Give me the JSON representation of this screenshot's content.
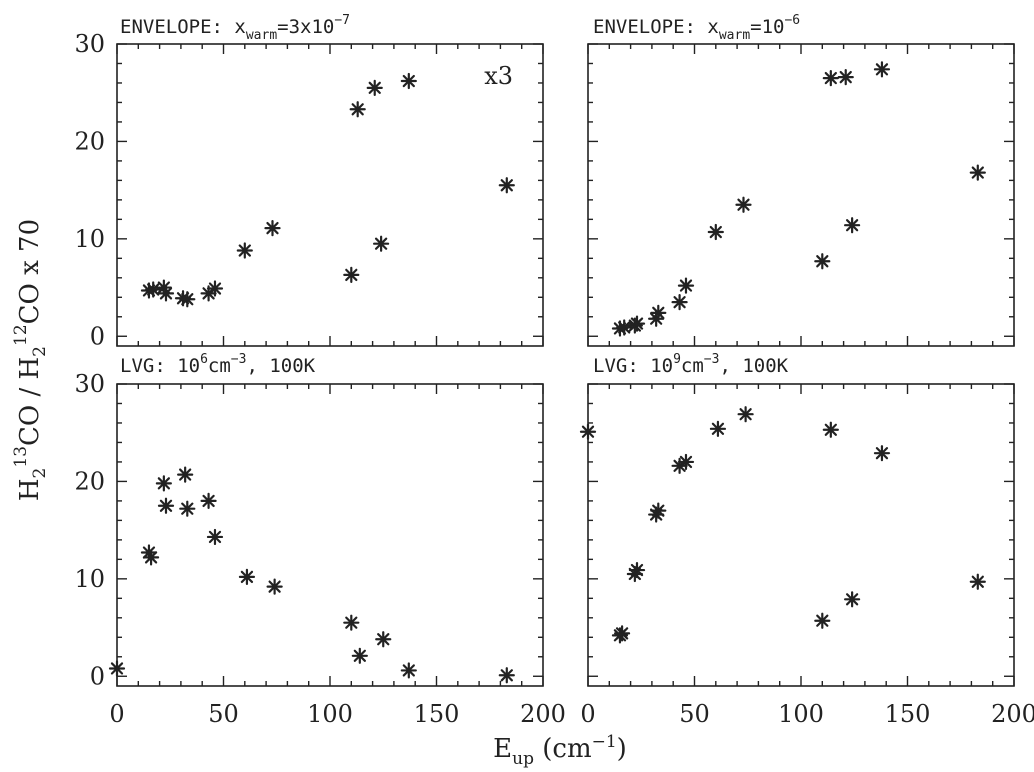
{
  "figure": {
    "xlabel_main": "E",
    "xlabel_sub": "up",
    "xlabel_unit_open": " (cm",
    "xlabel_unit_sup": "−1",
    "xlabel_unit_close": ")",
    "ylabel": {
      "p1": "H",
      "p1_sub": "2",
      "p2_sup": "13",
      "p3": "CO / H",
      "p3_sub": "2",
      "p4_sup": "12",
      "p5": "CO x 70"
    }
  },
  "chart_data": [
    {
      "type": "scatter",
      "panel": "top-left",
      "title": {
        "main": "ENVELOPE: x",
        "sub": "warm",
        "mid": "=3x10",
        "sup": "−7"
      },
      "annotation": "x3",
      "xlim": [
        0,
        200
      ],
      "ylim": [
        -1,
        30
      ],
      "xticks": [
        0,
        50,
        100,
        150,
        200
      ],
      "yticks": [
        0,
        10,
        20,
        30
      ],
      "show_xtick_labels": false,
      "show_ytick_labels": true,
      "points": [
        [
          15,
          4.7
        ],
        [
          17,
          4.8
        ],
        [
          22,
          5.0
        ],
        [
          23,
          4.4
        ],
        [
          31,
          3.9
        ],
        [
          33,
          3.8
        ],
        [
          43,
          4.4
        ],
        [
          46,
          4.9
        ],
        [
          60,
          8.8
        ],
        [
          73,
          11.1
        ],
        [
          110,
          6.3
        ],
        [
          113,
          23.3
        ],
        [
          121,
          25.5
        ],
        [
          124,
          9.5
        ],
        [
          137,
          26.2
        ],
        [
          183,
          15.5
        ]
      ]
    },
    {
      "type": "scatter",
      "panel": "top-right",
      "title": {
        "main": "ENVELOPE: x",
        "sub": "warm",
        "mid": "=10",
        "sup": "−6"
      },
      "annotation": "",
      "xlim": [
        0,
        200
      ],
      "ylim": [
        -1,
        30
      ],
      "xticks": [
        0,
        50,
        100,
        150,
        200
      ],
      "yticks": [
        0,
        10,
        20,
        30
      ],
      "show_xtick_labels": false,
      "show_ytick_labels": false,
      "points": [
        [
          15,
          0.8
        ],
        [
          17,
          0.9
        ],
        [
          22,
          1.1
        ],
        [
          23,
          1.3
        ],
        [
          32,
          1.8
        ],
        [
          33,
          2.4
        ],
        [
          43,
          3.5
        ],
        [
          46,
          5.2
        ],
        [
          60,
          10.7
        ],
        [
          73,
          13.5
        ],
        [
          110,
          7.7
        ],
        [
          114,
          26.5
        ],
        [
          121,
          26.6
        ],
        [
          124,
          11.4
        ],
        [
          138,
          27.4
        ],
        [
          183,
          16.8
        ]
      ]
    },
    {
      "type": "scatter",
      "panel": "bottom-left",
      "title": {
        "main": "LVG: 10",
        "sup": "6",
        "mid": "cm",
        "sup2": "−3",
        "tail": ", 100K"
      },
      "annotation": "",
      "xlim": [
        0,
        200
      ],
      "ylim": [
        -1,
        30
      ],
      "xticks": [
        0,
        50,
        100,
        150,
        200
      ],
      "yticks": [
        0,
        10,
        20,
        30
      ],
      "show_xtick_labels": true,
      "show_ytick_labels": true,
      "points": [
        [
          0,
          0.8
        ],
        [
          15,
          12.7
        ],
        [
          16,
          12.2
        ],
        [
          22,
          19.8
        ],
        [
          23,
          17.5
        ],
        [
          32,
          20.7
        ],
        [
          33,
          17.2
        ],
        [
          43,
          18.0
        ],
        [
          46,
          14.3
        ],
        [
          61,
          10.2
        ],
        [
          74,
          9.2
        ],
        [
          110,
          5.5
        ],
        [
          114,
          2.1
        ],
        [
          125,
          3.8
        ],
        [
          137,
          0.6
        ],
        [
          183,
          0.1
        ]
      ]
    },
    {
      "type": "scatter",
      "panel": "bottom-right",
      "title": {
        "main": "LVG: 10",
        "sup": "9",
        "mid": "cm",
        "sup2": "−3",
        "tail": ", 100K"
      },
      "annotation": "",
      "xlim": [
        0,
        200
      ],
      "ylim": [
        -1,
        30
      ],
      "xticks": [
        0,
        50,
        100,
        150,
        200
      ],
      "yticks": [
        0,
        10,
        20,
        30
      ],
      "show_xtick_labels": true,
      "show_ytick_labels": false,
      "points": [
        [
          0,
          25.1
        ],
        [
          15,
          4.2
        ],
        [
          16,
          4.4
        ],
        [
          22,
          10.5
        ],
        [
          23,
          10.9
        ],
        [
          32,
          16.6
        ],
        [
          33,
          17.0
        ],
        [
          43,
          21.6
        ],
        [
          46,
          22.0
        ],
        [
          61,
          25.4
        ],
        [
          74,
          26.9
        ],
        [
          110,
          5.7
        ],
        [
          114,
          25.3
        ],
        [
          124,
          7.9
        ],
        [
          138,
          22.9
        ],
        [
          183,
          9.7
        ]
      ]
    }
  ]
}
